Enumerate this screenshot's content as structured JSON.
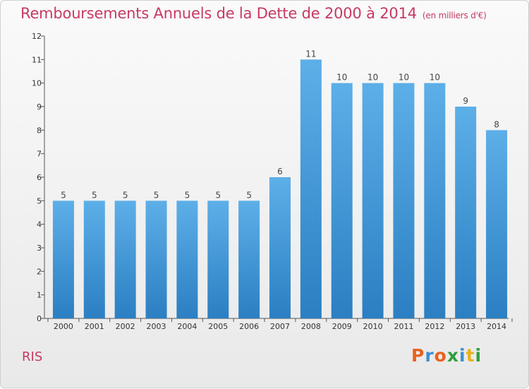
{
  "header": {
    "title": "Remboursements Annuels de la Dette de 2000 à 2014",
    "subtitle": "(en milliers d'€)"
  },
  "footer": {
    "place": "RIS",
    "logo": "Proxiti"
  },
  "colors": {
    "bar_top": "#5dafe8",
    "bar_bottom": "#2b7fc2",
    "title": "#c63a62",
    "logo_letters": [
      "#e8621f",
      "#3d8fd4",
      "#e8621f",
      "#2e9e3e",
      "#3d8fd4",
      "#e8b21f",
      "#2e9e3e"
    ]
  },
  "chart_data": {
    "type": "bar",
    "title": "Remboursements Annuels de la Dette de 2000 à 2014",
    "subtitle": "(en milliers d'€)",
    "xlabel": "",
    "ylabel": "",
    "categories": [
      "2000",
      "2001",
      "2002",
      "2003",
      "2004",
      "2005",
      "2006",
      "2007",
      "2008",
      "2009",
      "2010",
      "2011",
      "2012",
      "2013",
      "2014"
    ],
    "values": [
      5,
      5,
      5,
      5,
      5,
      5,
      5,
      6,
      11,
      10,
      10,
      10,
      10,
      9,
      8
    ],
    "data_labels": [
      "5",
      "5",
      "5",
      "5",
      "5",
      "5",
      "5",
      "6",
      "11",
      "10",
      "10",
      "10",
      "10",
      "9",
      "8"
    ],
    "ylim": [
      0,
      12
    ],
    "yticks": [
      0,
      1,
      2,
      3,
      4,
      5,
      6,
      7,
      8,
      9,
      10,
      11,
      12
    ],
    "grid": false,
    "legend": "none"
  }
}
